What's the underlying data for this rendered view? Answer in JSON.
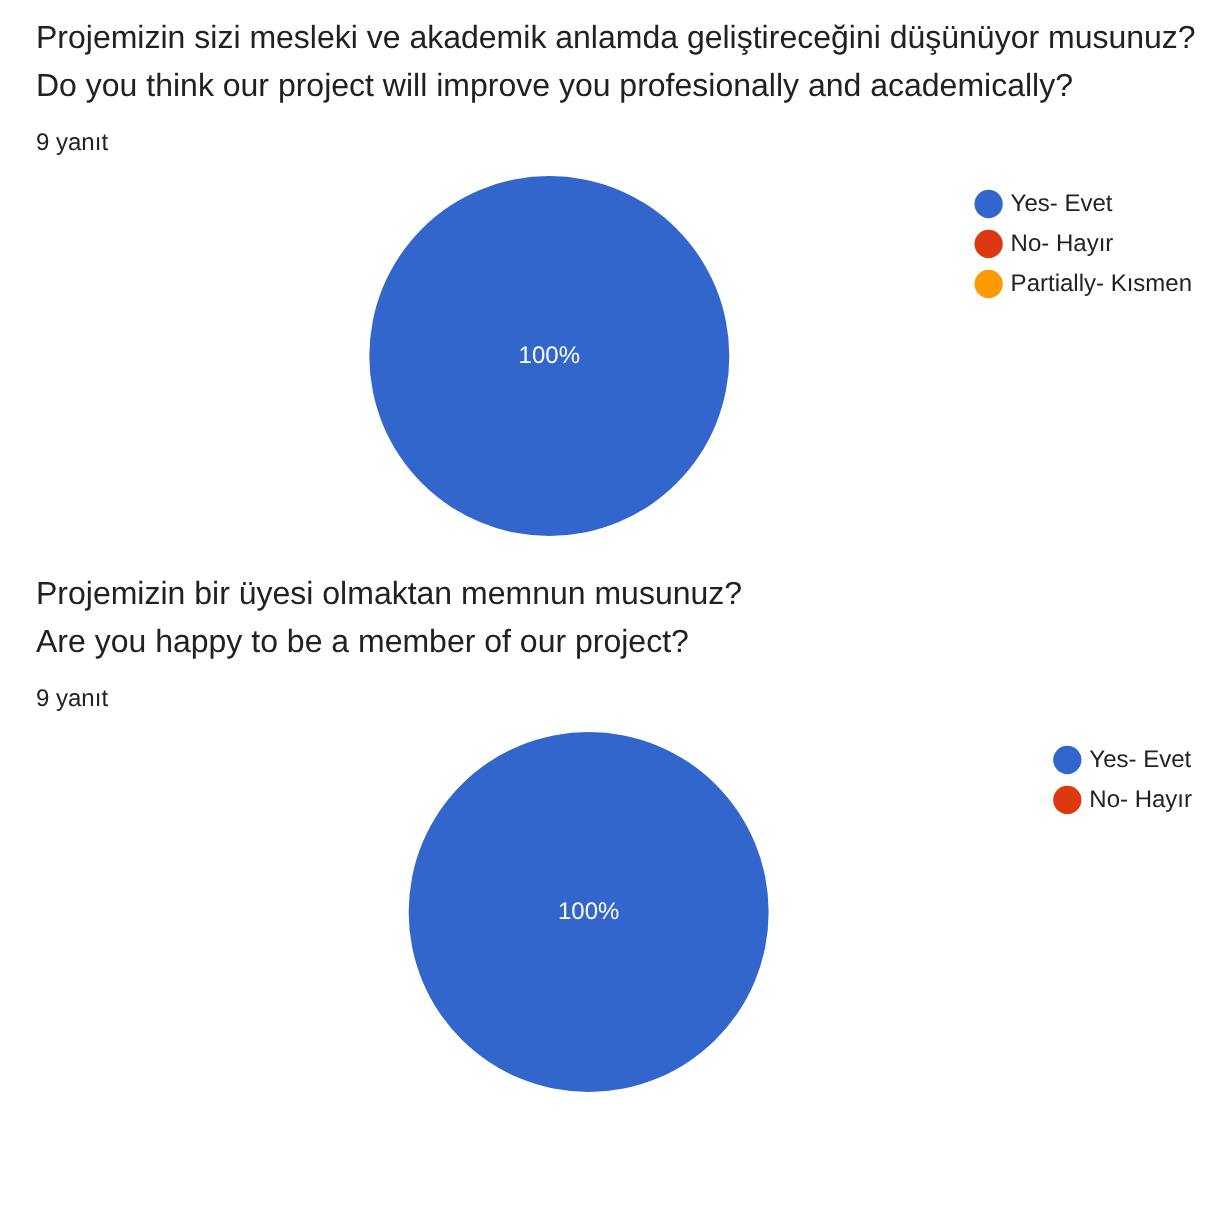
{
  "chart_data": [
    {
      "type": "pie",
      "title": "Projemizin sizi mesleki ve akademik anlamda geliştireceğini düşünüyor musunuz?\nDo you think our project will improve you profesionally and academically?",
      "subtitle": "9 yanıt",
      "categories": [
        "Yes- Evet",
        "No- Hayır",
        "Partially- Kısmen"
      ],
      "values": [
        100,
        0,
        0
      ],
      "colors": [
        "#3366cc",
        "#dc3912",
        "#ff9900"
      ],
      "value_labels": [
        "100%",
        null,
        null
      ],
      "legend": "top right"
    },
    {
      "type": "pie",
      "title": "Projemizin bir üyesi olmaktan memnun musunuz?\nAre you happy to be a member of our project?",
      "subtitle": "9 yanıt",
      "categories": [
        "Yes- Evet",
        "No- Hayır"
      ],
      "values": [
        100,
        0
      ],
      "colors": [
        "#3366cc",
        "#dc3912"
      ],
      "value_labels": [
        "100%",
        null
      ],
      "legend": "top right"
    }
  ]
}
